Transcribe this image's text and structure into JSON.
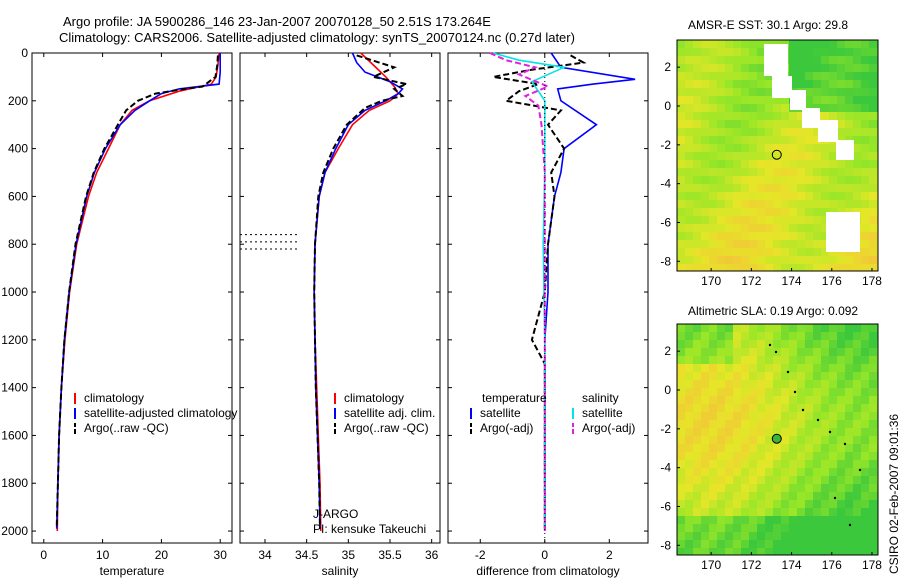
{
  "title_line1": "Argo profile: JA 5900286_146 23-Jan-2007 20070128_50 2.51S 173.264E",
  "title_line2": "Climatology: CARS2006. Satellite-adjusted climatology: synTS_20070124.nc (0.27d later)",
  "side_label": "CSIRO 02-Feb-2007 09:01:36",
  "colors": {
    "red": "#ff0000",
    "blue": "#0000ff",
    "black": "#000000",
    "cyan": "#00e5e5",
    "magenta": "#e020e0"
  },
  "chart_data": [
    {
      "type": "line",
      "id": "temperature",
      "xlabel": "temperature",
      "ylabel": "",
      "title": "",
      "xlim": [
        -2,
        32
      ],
      "ylim": [
        2050,
        0
      ],
      "xticks": [
        0,
        10,
        20,
        30
      ],
      "yticks": [
        0,
        200,
        400,
        600,
        800,
        1000,
        1200,
        1400,
        1600,
        1800,
        2000
      ],
      "legend": [
        "climatology",
        "satellite-adjusted climatology",
        "Argo(..raw -QC)"
      ],
      "series": [
        {
          "name": "climatology",
          "color": "red",
          "y": [
            0,
            50,
            100,
            130,
            160,
            200,
            240,
            300,
            400,
            500,
            600,
            800,
            1000,
            1200,
            1400,
            1600,
            1800,
            2000
          ],
          "x": [
            29.8,
            29.6,
            29.3,
            28.5,
            23,
            18,
            15,
            13,
            11,
            9,
            7.6,
            5.6,
            4.4,
            3.6,
            3.0,
            2.6,
            2.4,
            2.3
          ]
        },
        {
          "name": "satellite adj.",
          "color": "blue",
          "y": [
            0,
            30,
            80,
            130,
            150,
            170,
            200,
            240,
            300,
            400,
            500,
            600,
            800,
            1000,
            1200,
            1400,
            1600,
            1800,
            1990
          ],
          "x": [
            30,
            30,
            30,
            29.8,
            23,
            20,
            18,
            15.5,
            13,
            10.5,
            8.6,
            7.3,
            5.5,
            4.3,
            3.5,
            3.0,
            2.6,
            2.4,
            2.2
          ]
        },
        {
          "name": "Argo",
          "color": "black",
          "dash": true,
          "y": [
            10,
            50,
            100,
            140,
            150,
            170,
            200,
            240,
            300,
            400,
            500,
            600,
            800,
            1000,
            1200,
            1400,
            1600,
            1800,
            1990
          ],
          "x": [
            29.6,
            29.5,
            29.2,
            27,
            24,
            19,
            16,
            14,
            12.6,
            10.3,
            8.5,
            7.2,
            5.4,
            4.3,
            3.5,
            3.0,
            2.6,
            2.4,
            2.2
          ]
        }
      ]
    },
    {
      "type": "line",
      "id": "salinity",
      "xlabel": "salinity",
      "title": "",
      "xlim": [
        33.7,
        36.1
      ],
      "ylim": [
        2050,
        0
      ],
      "xticks": [
        34,
        34.5,
        35,
        35.5,
        36
      ],
      "legend": [
        "climatology",
        "satellite adj. clim.",
        "Argo(..raw -QC)"
      ],
      "annotation": [
        "J-ARGO",
        "PI: kensuke Takeuchi"
      ],
      "series": [
        {
          "name": "climatology",
          "color": "red",
          "y": [
            0,
            50,
            100,
            140,
            170,
            200,
            240,
            300,
            400,
            500,
            600,
            800,
            1000,
            1200,
            1400,
            1600,
            1800,
            2000
          ],
          "x": [
            35.15,
            35.3,
            35.45,
            35.55,
            35.6,
            35.5,
            35.25,
            35.05,
            34.88,
            34.72,
            34.65,
            34.6,
            34.59,
            34.6,
            34.62,
            34.64,
            34.66,
            34.67
          ]
        },
        {
          "name": "satellite adj.",
          "color": "blue",
          "y": [
            0,
            40,
            80,
            120,
            150,
            170,
            200,
            240,
            300,
            400,
            500,
            600,
            800,
            1000,
            1200,
            1400,
            1600,
            1800,
            1990
          ],
          "x": [
            35.05,
            35.1,
            35.2,
            35.5,
            35.65,
            35.6,
            35.45,
            35.2,
            35.0,
            34.85,
            34.72,
            34.65,
            34.6,
            34.59,
            34.6,
            34.61,
            34.63,
            34.65,
            34.66
          ]
        },
        {
          "name": "Argo",
          "color": "black",
          "dash": true,
          "y": [
            10,
            60,
            100,
            130,
            150,
            180,
            200,
            230,
            300,
            400,
            500,
            600,
            800,
            1000,
            1200,
            1400,
            1600,
            1800,
            1990
          ],
          "x": [
            35.1,
            35.55,
            35.3,
            35.7,
            35.55,
            35.65,
            35.4,
            35.2,
            34.98,
            34.82,
            34.7,
            34.64,
            34.6,
            34.59,
            34.6,
            34.61,
            34.63,
            34.65,
            34.66
          ]
        }
      ]
    },
    {
      "type": "line",
      "id": "difference",
      "xlabel": "difference from climatology",
      "title": "",
      "xlim": [
        -3,
        3.2
      ],
      "ylim": [
        2050,
        0
      ],
      "xticks": [
        -2,
        0,
        2
      ],
      "legend_left_title": "temperature",
      "legend_left": [
        "satellite",
        "Argo(-adj)"
      ],
      "legend_right_title": "salinity",
      "legend_right": [
        "satellite",
        "Argo(-adj)"
      ],
      "series": [
        {
          "name": "temp satellite",
          "color": "blue",
          "y": [
            0,
            60,
            110,
            130,
            150,
            200,
            300,
            400,
            500,
            600,
            800,
            1000,
            1200,
            1400,
            1600,
            1800,
            2000
          ],
          "x": [
            0.2,
            0.5,
            2.8,
            1.5,
            0.4,
            0.5,
            1.6,
            0.6,
            0.5,
            0.3,
            0.1,
            0.1,
            0.0,
            0.0,
            0.0,
            0.0,
            0.0
          ]
        },
        {
          "name": "temp Argo",
          "color": "black",
          "dash": true,
          "y": [
            10,
            40,
            70,
            100,
            130,
            160,
            200,
            240,
            300,
            400,
            500,
            600,
            800,
            1000,
            1200,
            1300,
            1400,
            1600,
            1800,
            2000
          ],
          "x": [
            0.8,
            1.2,
            -0.4,
            -1.6,
            -0.2,
            -0.8,
            -1.2,
            0.5,
            0.1,
            0.6,
            0.2,
            0.3,
            0.1,
            0.0,
            -0.4,
            0.0,
            0.0,
            0.0,
            0.0,
            0.0
          ]
        },
        {
          "name": "sal satellite",
          "color": "cyan",
          "y": [
            0,
            30,
            60,
            120,
            200,
            300,
            500,
            800,
            1200,
            1600,
            2000
          ],
          "x": [
            -1.6,
            -0.8,
            0.6,
            -0.4,
            0.0,
            0.0,
            0.0,
            -0.05,
            0.0,
            0.0,
            0.0
          ]
        },
        {
          "name": "sal Argo",
          "color": "magenta",
          "dash": true,
          "y": [
            0,
            30,
            60,
            90,
            140,
            180,
            220,
            300,
            500,
            800,
            1200,
            1600,
            2000
          ],
          "x": [
            -1.7,
            -1.2,
            -0.3,
            -0.8,
            0.1,
            -0.6,
            -0.2,
            -0.1,
            0.0,
            0.0,
            0.0,
            0.0,
            0.0
          ]
        }
      ]
    },
    {
      "type": "heatmap",
      "id": "sst",
      "title": "AMSR-E SST: 30.1 Argo: 29.8",
      "xlim": [
        168.3,
        178.3
      ],
      "ylim": [
        -8.5,
        3.4
      ],
      "xticks": [
        170,
        172,
        174,
        176,
        178
      ],
      "yticks": [
        -8,
        -6,
        -4,
        -2,
        0,
        2
      ],
      "marker": {
        "lon": 173.264,
        "lat": -2.51
      }
    },
    {
      "type": "heatmap",
      "id": "sla",
      "title": "Altimetric SLA: 0.19 Argo: 0.092",
      "xlim": [
        168.3,
        178.3
      ],
      "ylim": [
        -8.5,
        3.4
      ],
      "xticks": [
        170,
        172,
        174,
        176,
        178
      ],
      "yticks": [
        -8,
        -6,
        -4,
        -2,
        0,
        2
      ],
      "marker": {
        "lon": 173.264,
        "lat": -2.51
      }
    }
  ]
}
